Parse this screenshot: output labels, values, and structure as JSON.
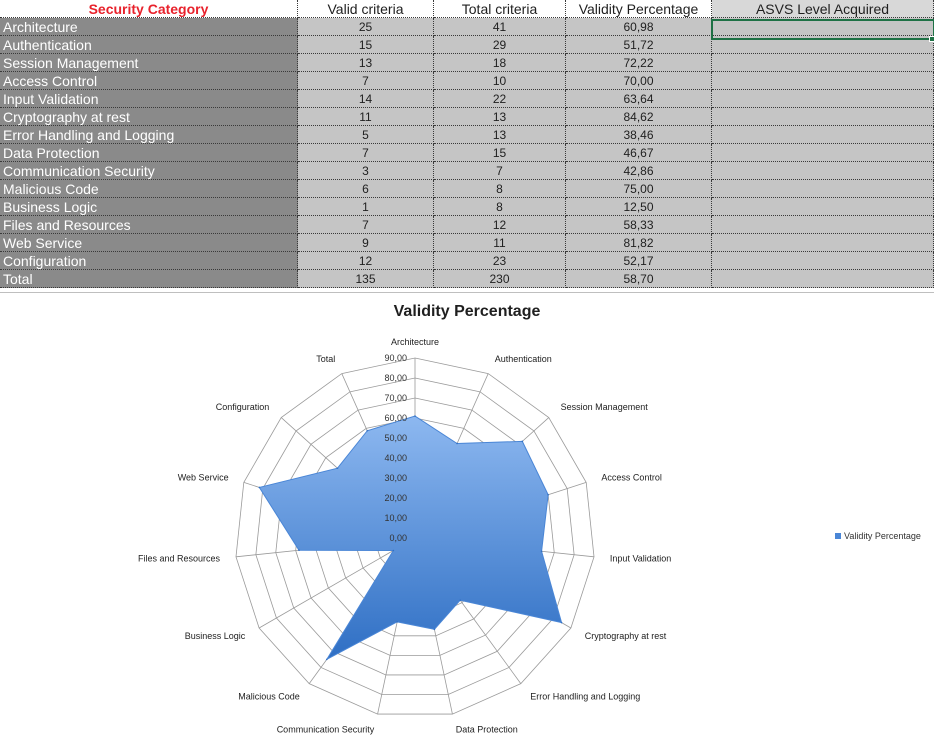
{
  "sheet": {
    "headers": {
      "category": "Security Category",
      "valid": "Valid criteria",
      "total": "Total criteria",
      "percentage": "Validity Percentage",
      "asvs": "ASVS Level Acquired"
    },
    "rows": [
      {
        "category": "Architecture",
        "valid": "25",
        "total": "41",
        "percentage": "60,98"
      },
      {
        "category": "Authentication",
        "valid": "15",
        "total": "29",
        "percentage": "51,72"
      },
      {
        "category": "Session Management",
        "valid": "13",
        "total": "18",
        "percentage": "72,22"
      },
      {
        "category": "Access Control",
        "valid": "7",
        "total": "10",
        "percentage": "70,00"
      },
      {
        "category": "Input Validation",
        "valid": "14",
        "total": "22",
        "percentage": "63,64"
      },
      {
        "category": "Cryptography at rest",
        "valid": "11",
        "total": "13",
        "percentage": "84,62"
      },
      {
        "category": "Error Handling and Logging",
        "valid": "5",
        "total": "13",
        "percentage": "38,46"
      },
      {
        "category": "Data Protection",
        "valid": "7",
        "total": "15",
        "percentage": "46,67"
      },
      {
        "category": "Communication Security",
        "valid": "3",
        "total": "7",
        "percentage": "42,86"
      },
      {
        "category": "Malicious Code",
        "valid": "6",
        "total": "8",
        "percentage": "75,00"
      },
      {
        "category": "Business Logic",
        "valid": "1",
        "total": "8",
        "percentage": "12,50"
      },
      {
        "category": "Files and Resources",
        "valid": "7",
        "total": "12",
        "percentage": "58,33"
      },
      {
        "category": "Web Service",
        "valid": "9",
        "total": "11",
        "percentage": "81,82"
      },
      {
        "category": "Configuration",
        "valid": "12",
        "total": "23",
        "percentage": "52,17"
      },
      {
        "category": "Total",
        "valid": "135",
        "total": "230",
        "percentage": "58,70"
      }
    ]
  },
  "chart_data": {
    "type": "radar",
    "title": "Validity Percentage",
    "categories": [
      "Architecture",
      "Authentication",
      "Session Management",
      "Access Control",
      "Input Validation",
      "Cryptography at rest",
      "Error Handling and Logging",
      "Data Protection",
      "Communication Security",
      "Malicious Code",
      "Business Logic",
      "Files and Resources",
      "Web Service",
      "Configuration",
      "Total"
    ],
    "series": [
      {
        "name": "Validity Percentage",
        "values": [
          60.98,
          51.72,
          72.22,
          70.0,
          63.64,
          84.62,
          38.46,
          46.67,
          42.86,
          75.0,
          12.5,
          58.33,
          81.82,
          52.17,
          58.7
        ]
      }
    ],
    "rlim": [
      0,
      90
    ],
    "ticks": [
      "0,00",
      "10,00",
      "20,00",
      "30,00",
      "40,00",
      "50,00",
      "60,00",
      "70,00",
      "80,00",
      "90,00"
    ],
    "legend_position": "right",
    "fill_color_top": "#8db8f0",
    "fill_color_bottom": "#2f6fc4"
  }
}
